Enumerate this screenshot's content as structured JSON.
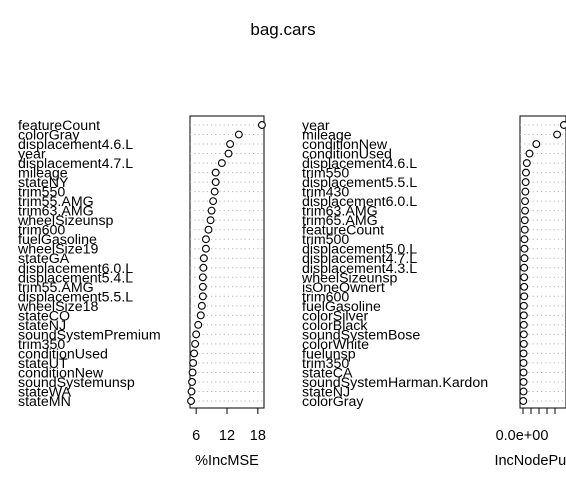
{
  "chart_data": {
    "title": "bag.cars",
    "type": "scatter",
    "panels": [
      {
        "xlabel": "%IncMSE",
        "xticks": [
          6,
          12,
          18
        ],
        "xlim": [
          4.8,
          19.2
        ],
        "labels": [
          "featureCount",
          "colorGray",
          "displacement4.6.L",
          "year",
          "displacement4.7.L",
          "mileage",
          "stateNY",
          "trim550",
          "trim55.AMG",
          "trim63.AMG",
          "wheelSizeunsp",
          "trim600",
          "fuelGasoline",
          "wheelSize19",
          "stateGA",
          "displacement6.0.L",
          "displacement5.4.L",
          "trim55.AMG",
          "displacement5.5.L",
          "wheelSize18",
          "stateCO",
          "stateNJ",
          "soundSystemPremium",
          "trim350",
          "conditionUsed",
          "stateUT",
          "conditionNew",
          "soundSystemunsp",
          "stateWA",
          "stateMN"
        ],
        "values": [
          18.8,
          14.3,
          12.6,
          12.3,
          11.0,
          9.8,
          9.8,
          9.6,
          9.3,
          9.0,
          8.8,
          8.4,
          7.9,
          7.9,
          7.5,
          7.4,
          7.3,
          7.3,
          7.3,
          7.1,
          6.9,
          6.4,
          6.0,
          5.8,
          5.6,
          5.4,
          5.3,
          5.2,
          5.1,
          5.0
        ]
      },
      {
        "xlabel": "IncNodePurity",
        "xticks": [
          "0.0e+00"
        ],
        "xlim": [
          -0.1,
          1.45
        ],
        "labels": [
          "year",
          "mileage",
          "conditionNew",
          "conditionUsed",
          "displacement4.6.L",
          "trim550",
          "displacement5.5.L",
          "trim430",
          "displacement6.0.L",
          "trim63.AMG",
          "trim65.AMG",
          "featureCount",
          "trim500",
          "displacement5.0.L",
          "displacement4.7.L",
          "displacement4.3.L",
          "wheelSizeunsp",
          "isOneOwnert",
          "trim600",
          "fuelGasoline",
          "colorSilver",
          "colorBlack",
          "soundSystemBose",
          "colorWhite",
          "fuelunsp",
          "trim350",
          "stateCA",
          "soundSystemHarman.Kardon",
          "stateNJ",
          "colorGray"
        ],
        "values": [
          1.38,
          1.15,
          0.45,
          0.22,
          0.13,
          0.1,
          0.09,
          0.08,
          0.07,
          0.07,
          0.06,
          0.06,
          0.05,
          0.05,
          0.05,
          0.04,
          0.04,
          0.04,
          0.04,
          0.03,
          0.03,
          0.03,
          0.03,
          0.03,
          0.02,
          0.02,
          0.02,
          0.02,
          0.02,
          0.01
        ]
      }
    ]
  }
}
